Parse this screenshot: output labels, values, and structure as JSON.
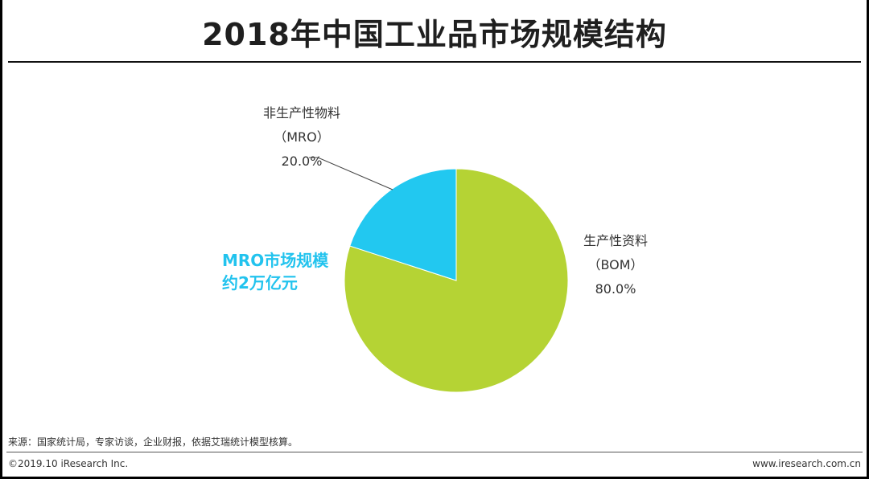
{
  "title": "2018年中国工业品市场规模结构",
  "chart_data": {
    "type": "pie",
    "title": "2018年中国工业品市场规模结构",
    "slices": [
      {
        "name_lines": [
          "生产性资料",
          "（BOM）"
        ],
        "value": 80.0,
        "label": "80.0%",
        "color": "#b5d334"
      },
      {
        "name_lines": [
          "非生产性物料",
          "（MRO）"
        ],
        "value": 20.0,
        "label": "20.0%",
        "color": "#22c8f0"
      }
    ]
  },
  "annotation": {
    "line1": "MRO市场规模",
    "line2": "约2万亿元",
    "color": "#22c3ee"
  },
  "footer": {
    "source": "来源：国家统计局，专家访谈，企业财报，依据艾瑞统计模型核算。",
    "copyright": "©2019.10 iResearch Inc.",
    "site": "www.iresearch.com.cn"
  }
}
